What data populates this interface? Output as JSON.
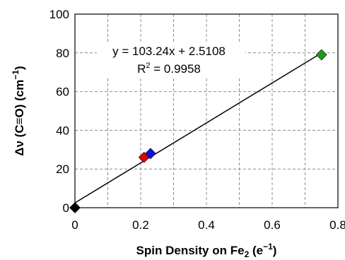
{
  "chart_data": {
    "type": "scatter",
    "xlabel": "Spin Density on Fe",
    "xlabel_sub": "2",
    "xlabel_unit": " (e",
    "xlabel_unit_sup": "−1",
    "xlabel_close": ")",
    "ylabel": "Δν (C≡O) (cm",
    "ylabel_sup": "−1",
    "ylabel_close": ")",
    "xlim": [
      0,
      0.8
    ],
    "ylim": [
      0,
      100
    ],
    "x_ticks": [
      "0",
      "0.2",
      "0.4",
      "0.6",
      "0.8"
    ],
    "y_ticks": [
      "0",
      "20",
      "40",
      "60",
      "80",
      "100"
    ],
    "x_tick_values": [
      0,
      0.2,
      0.4,
      0.6,
      0.8
    ],
    "y_tick_values": [
      0,
      20,
      40,
      60,
      80,
      100
    ],
    "x_minor_grid": [
      0.1,
      0.3,
      0.5,
      0.7
    ],
    "grid": true,
    "points": [
      {
        "x": 0.0,
        "y": 0,
        "color": "#000000"
      },
      {
        "x": 0.21,
        "y": 26,
        "color": "#e00000"
      },
      {
        "x": 0.23,
        "y": 28,
        "color": "#1010d8"
      },
      {
        "x": 0.75,
        "y": 79,
        "color": "#1a9a1a"
      }
    ],
    "trendline": {
      "slope": 103.24,
      "intercept": 2.5108,
      "x_range": [
        0.0,
        0.75
      ],
      "color": "#000000"
    },
    "annotations": {
      "equation": "y = 103.24x + 2.5108",
      "r2_label": "R",
      "r2_sup": "2",
      "r2_value": " = 0.9958"
    }
  }
}
